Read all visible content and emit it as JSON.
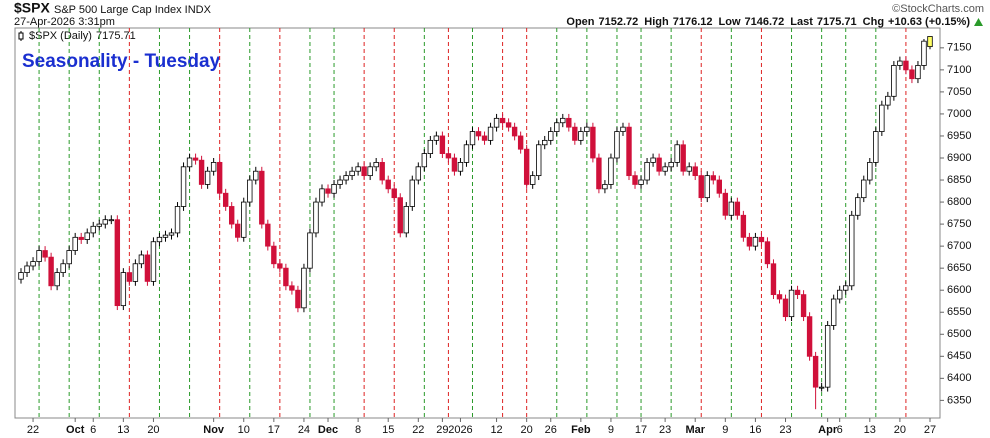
{
  "chart_data": {
    "type": "candlestick",
    "header": {
      "symbol": "$SPX",
      "name": "S&P 500 Large Cap Index INDX",
      "timestamp": "27-Apr-2026 3:31pm",
      "copyright": "©StockCharts.com",
      "open_label": "Open",
      "high_label": "High",
      "low_label": "Low",
      "last_label": "Last",
      "chg_label": "Chg",
      "change": "+10.63 (+0.15%)"
    },
    "annotation": "Seasonality - Tuesday",
    "colors": {
      "up": "#000000",
      "down": "#d0103a",
      "marker_up": "#2a9a2a",
      "marker_down": "#dd2222",
      "last_fill": "#ffff66",
      "annotation": "#1a2fd0"
    },
    "ylim": [
      6310,
      7195
    ],
    "yticks": [
      6350,
      6400,
      6450,
      6500,
      6550,
      6600,
      6650,
      6700,
      6750,
      6800,
      6850,
      6900,
      6950,
      7000,
      7050,
      7100,
      7150
    ],
    "grid": false,
    "xticks": [
      {
        "value": 2,
        "label": "22"
      },
      {
        "value": 9,
        "label": "Oct"
      },
      {
        "value": 12,
        "label": "6"
      },
      {
        "value": 17,
        "label": "13"
      },
      {
        "value": 22,
        "label": "20"
      },
      {
        "value": 32,
        "label": "Nov"
      },
      {
        "value": 37,
        "label": "10"
      },
      {
        "value": 42,
        "label": "17"
      },
      {
        "value": 47,
        "label": "24"
      },
      {
        "value": 51,
        "label": "Dec"
      },
      {
        "value": 56,
        "label": "8"
      },
      {
        "value": 61,
        "label": "15"
      },
      {
        "value": 66,
        "label": "22"
      },
      {
        "value": 70,
        "label": "29"
      },
      {
        "value": 73,
        "label": "2026"
      },
      {
        "value": 79,
        "label": "12"
      },
      {
        "value": 84,
        "label": "20"
      },
      {
        "value": 88,
        "label": "26"
      },
      {
        "value": 93,
        "label": "Feb"
      },
      {
        "value": 98,
        "label": "9"
      },
      {
        "value": 103,
        "label": "17"
      },
      {
        "value": 107,
        "label": "23"
      },
      {
        "value": 112,
        "label": "Mar"
      },
      {
        "value": 117,
        "label": "9"
      },
      {
        "value": 122,
        "label": "16"
      },
      {
        "value": 127,
        "label": "23"
      },
      {
        "value": 134,
        "label": "Apr"
      },
      {
        "value": 136,
        "label": "6"
      },
      {
        "value": 141,
        "label": "13"
      },
      {
        "value": 146,
        "label": "20"
      },
      {
        "value": 151,
        "label": "27"
      }
    ],
    "marker_lines": [
      3,
      8,
      13,
      18,
      23,
      28,
      33,
      38,
      43,
      48,
      52,
      57,
      62,
      67,
      71,
      75,
      80,
      84,
      89,
      94,
      99,
      103,
      108,
      113,
      118,
      123,
      128,
      133,
      137,
      142,
      147
    ],
    "series": [
      {
        "name": "$SPX (Daily)",
        "open": [
          6625,
          6640,
          6655,
          6665,
          6690,
          6675,
          6610,
          6640,
          6660,
          6690,
          6720,
          6715,
          6730,
          6745,
          6750,
          6760,
          6760,
          6565,
          6640,
          6620,
          6660,
          6680,
          6620,
          6710,
          6720,
          6725,
          6730,
          6790,
          6880,
          6900,
          6895,
          6840,
          6870,
          6890,
          6820,
          6790,
          6750,
          6720,
          6800,
          6850,
          6870,
          6750,
          6700,
          6660,
          6650,
          6610,
          6600,
          6560,
          6650,
          6730,
          6800,
          6830,
          6820,
          6840,
          6850,
          6860,
          6870,
          6880,
          6860,
          6880,
          6890,
          6850,
          6830,
          6810,
          6730,
          6790,
          6850,
          6880,
          6910,
          6940,
          6950,
          6910,
          6900,
          6870,
          6890,
          6930,
          6960,
          6950,
          6940,
          6970,
          6990,
          6980,
          6970,
          6950,
          6920,
          6840,
          6860,
          6930,
          6940,
          6960,
          6980,
          6990,
          6970,
          6940,
          6960,
          6970,
          6900,
          6830,
          6840,
          6900,
          6960,
          6970,
          6860,
          6840,
          6850,
          6890,
          6900,
          6870,
          6880,
          6890,
          6930,
          6870,
          6880,
          6860,
          6810,
          6860,
          6850,
          6820,
          6770,
          6800,
          6770,
          6720,
          6700,
          6720,
          6710,
          6660,
          6590,
          6580,
          6540,
          6600,
          6590,
          6540,
          6450,
          6380,
          6380,
          6520,
          6580,
          6600,
          6610,
          6770,
          6810,
          6850,
          6890,
          6960,
          7020,
          7040,
          7110,
          7120,
          7100,
          7080,
          7110,
          7152.72
        ],
        "high": [
          6650,
          6665,
          6675,
          6700,
          6700,
          6685,
          6650,
          6670,
          6700,
          6730,
          6730,
          6740,
          6755,
          6760,
          6770,
          6770,
          6770,
          6650,
          6650,
          6670,
          6690,
          6690,
          6720,
          6730,
          6735,
          6740,
          6800,
          6890,
          6910,
          6910,
          6905,
          6880,
          6900,
          6900,
          6830,
          6800,
          6760,
          6810,
          6860,
          6880,
          6880,
          6760,
          6710,
          6670,
          6660,
          6620,
          6610,
          6660,
          6740,
          6810,
          6840,
          6840,
          6850,
          6860,
          6870,
          6880,
          6890,
          6890,
          6890,
          6900,
          6900,
          6860,
          6840,
          6820,
          6800,
          6860,
          6890,
          6920,
          6950,
          6960,
          6960,
          6920,
          6910,
          6900,
          6940,
          6970,
          6970,
          6960,
          6980,
          7000,
          7000,
          6990,
          6980,
          6960,
          6930,
          6870,
          6940,
          6950,
          6970,
          6990,
          7000,
          7000,
          6980,
          6970,
          6980,
          6980,
          6910,
          6850,
          6910,
          6970,
          6980,
          6980,
          6870,
          6860,
          6900,
          6910,
          6910,
          6890,
          6900,
          6940,
          6940,
          6890,
          6890,
          6870,
          6870,
          6870,
          6860,
          6830,
          6810,
          6810,
          6780,
          6730,
          6730,
          6730,
          6720,
          6670,
          6600,
          6590,
          6610,
          6610,
          6600,
          6550,
          6460,
          6390,
          6530,
          6590,
          6610,
          6620,
          6780,
          6820,
          6860,
          6900,
          6970,
          7030,
          7050,
          7120,
          7130,
          7130,
          7110,
          7120,
          7170,
          7176.12
        ],
        "low": [
          6615,
          6630,
          6645,
          6655,
          6665,
          6600,
          6600,
          6630,
          6650,
          6680,
          6705,
          6705,
          6720,
          6735,
          6740,
          6750,
          6555,
          6555,
          6610,
          6610,
          6650,
          6610,
          6610,
          6700,
          6710,
          6715,
          6720,
          6780,
          6870,
          6885,
          6830,
          6830,
          6860,
          6810,
          6780,
          6740,
          6710,
          6710,
          6790,
          6840,
          6740,
          6690,
          6650,
          6640,
          6600,
          6590,
          6550,
          6550,
          6640,
          6720,
          6790,
          6810,
          6810,
          6830,
          6840,
          6850,
          6860,
          6850,
          6850,
          6870,
          6840,
          6820,
          6800,
          6720,
          6720,
          6780,
          6840,
          6870,
          6900,
          6930,
          6900,
          6890,
          6860,
          6860,
          6880,
          6920,
          6940,
          6930,
          6930,
          6960,
          6970,
          6960,
          6940,
          6910,
          6830,
          6830,
          6850,
          6920,
          6930,
          6950,
          6970,
          6960,
          6930,
          6930,
          6950,
          6890,
          6820,
          6820,
          6830,
          6890,
          6950,
          6850,
          6830,
          6830,
          6840,
          6880,
          6860,
          6860,
          6870,
          6880,
          6860,
          6860,
          6850,
          6800,
          6800,
          6840,
          6810,
          6760,
          6760,
          6760,
          6710,
          6690,
          6690,
          6700,
          6650,
          6580,
          6570,
          6530,
          6530,
          6580,
          6530,
          6440,
          6330,
          6370,
          6370,
          6510,
          6570,
          6590,
          6600,
          6760,
          6800,
          6840,
          6880,
          6950,
          7010,
          7030,
          7100,
          7090,
          7070,
          7070,
          7100,
          7146.72
        ],
        "close": [
          6640,
          6655,
          6665,
          6690,
          6675,
          6610,
          6640,
          6660,
          6690,
          6720,
          6715,
          6730,
          6745,
          6750,
          6760,
          6760,
          6565,
          6640,
          6620,
          6660,
          6680,
          6620,
          6710,
          6720,
          6725,
          6730,
          6790,
          6880,
          6900,
          6895,
          6840,
          6870,
          6890,
          6820,
          6790,
          6750,
          6720,
          6800,
          6850,
          6870,
          6750,
          6700,
          6660,
          6650,
          6610,
          6600,
          6560,
          6650,
          6730,
          6800,
          6830,
          6820,
          6840,
          6850,
          6860,
          6870,
          6880,
          6860,
          6880,
          6890,
          6850,
          6830,
          6810,
          6730,
          6790,
          6850,
          6880,
          6910,
          6940,
          6950,
          6910,
          6900,
          6870,
          6890,
          6930,
          6960,
          6950,
          6940,
          6970,
          6990,
          6980,
          6970,
          6950,
          6920,
          6840,
          6860,
          6930,
          6940,
          6960,
          6980,
          6990,
          6970,
          6940,
          6960,
          6970,
          6900,
          6830,
          6840,
          6900,
          6960,
          6970,
          6860,
          6840,
          6850,
          6890,
          6900,
          6870,
          6880,
          6890,
          6930,
          6870,
          6880,
          6860,
          6810,
          6860,
          6850,
          6820,
          6770,
          6800,
          6770,
          6720,
          6700,
          6720,
          6710,
          6660,
          6590,
          6580,
          6540,
          6600,
          6590,
          6540,
          6450,
          6380,
          6380,
          6520,
          6580,
          6600,
          6610,
          6770,
          6810,
          6850,
          6890,
          6960,
          7020,
          7040,
          7110,
          7120,
          7100,
          7080,
          7110,
          7165.08,
          7175.71
        ]
      }
    ]
  }
}
